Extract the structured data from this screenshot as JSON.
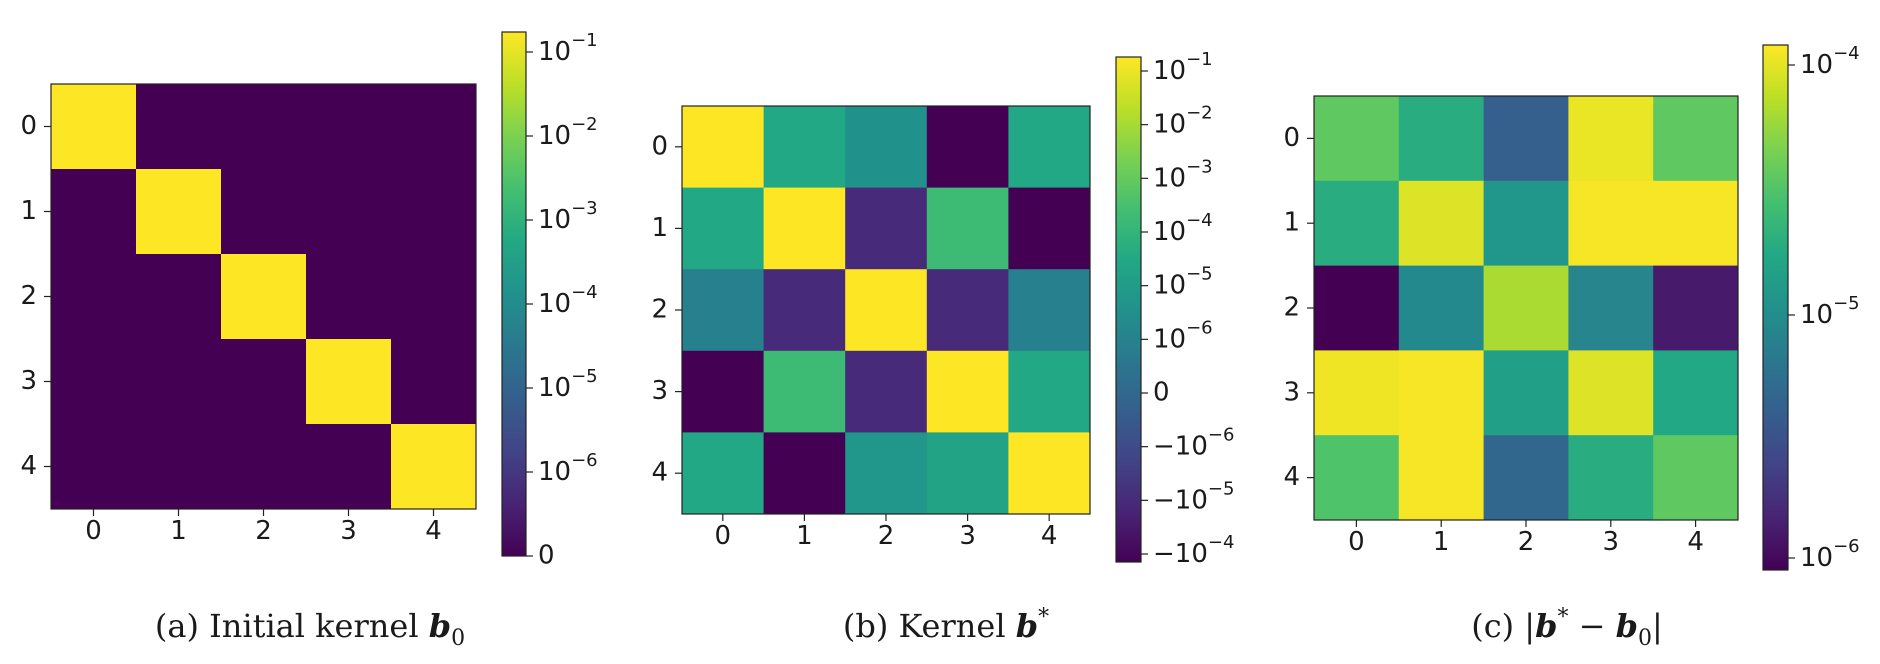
{
  "colormap": [
    "#440154",
    "#482475",
    "#414487",
    "#355f8d",
    "#2a788e",
    "#21918c",
    "#22a884",
    "#44bf70",
    "#7ad151",
    "#bddf26",
    "#fde725"
  ],
  "chart_data": [
    {
      "type": "heatmap",
      "panel": "a",
      "caption": {
        "prefix": "(a) Initial kernel ",
        "symbol": "b",
        "sub": "0"
      },
      "x_ticks": [
        "0",
        "1",
        "2",
        "3",
        "4"
      ],
      "y_ticks": [
        "0",
        "1",
        "2",
        "3",
        "4"
      ],
      "colorbar_ticks": [
        "0",
        "10−6",
        "10−5",
        "10−4",
        "10−3",
        "10−2",
        "10−1"
      ],
      "color_levels": [
        [
          1.0,
          0.0,
          0.0,
          0.0,
          0.0
        ],
        [
          0.0,
          1.0,
          0.0,
          0.0,
          0.0
        ],
        [
          0.0,
          0.0,
          1.0,
          0.0,
          0.0
        ],
        [
          0.0,
          0.0,
          0.0,
          1.0,
          0.0
        ],
        [
          0.0,
          0.0,
          0.0,
          0.0,
          1.0
        ]
      ]
    },
    {
      "type": "heatmap",
      "panel": "b",
      "caption": {
        "prefix": "(b) Kernel ",
        "symbol": "b",
        "sup": "*"
      },
      "x_ticks": [
        "0",
        "1",
        "2",
        "3",
        "4"
      ],
      "y_ticks": [
        "0",
        "1",
        "2",
        "3",
        "4"
      ],
      "colorbar_ticks": [
        "−10−4",
        "−10−5",
        "−10−6",
        "0",
        "10−6",
        "10−5",
        "10−4",
        "10−3",
        "10−2",
        "10−1"
      ],
      "color_levels": [
        [
          1.0,
          0.6,
          0.5,
          0.0,
          0.6
        ],
        [
          0.6,
          1.0,
          0.12,
          0.68,
          0.0
        ],
        [
          0.43,
          0.12,
          1.0,
          0.12,
          0.43
        ],
        [
          0.0,
          0.68,
          0.12,
          1.0,
          0.6
        ],
        [
          0.6,
          0.0,
          0.52,
          0.58,
          1.0
        ]
      ]
    },
    {
      "type": "heatmap",
      "panel": "c",
      "caption": {
        "prefix": "(c) |",
        "symbol1": "b",
        "sup": "*",
        "mid": " − ",
        "symbol2": "b",
        "sub": "0",
        "suffix": "|"
      },
      "x_ticks": [
        "0",
        "1",
        "2",
        "3",
        "4"
      ],
      "y_ticks": [
        "0",
        "1",
        "2",
        "3",
        "4"
      ],
      "colorbar_ticks": [
        "10−6",
        "10−5",
        "10−4"
      ],
      "color_levels": [
        [
          0.75,
          0.62,
          0.3,
          0.97,
          0.75
        ],
        [
          0.62,
          0.95,
          0.52,
          0.99,
          0.99
        ],
        [
          0.0,
          0.47,
          0.87,
          0.45,
          0.07
        ],
        [
          0.98,
          0.99,
          0.56,
          0.95,
          0.6
        ],
        [
          0.72,
          0.99,
          0.33,
          0.62,
          0.75
        ]
      ]
    }
  ]
}
